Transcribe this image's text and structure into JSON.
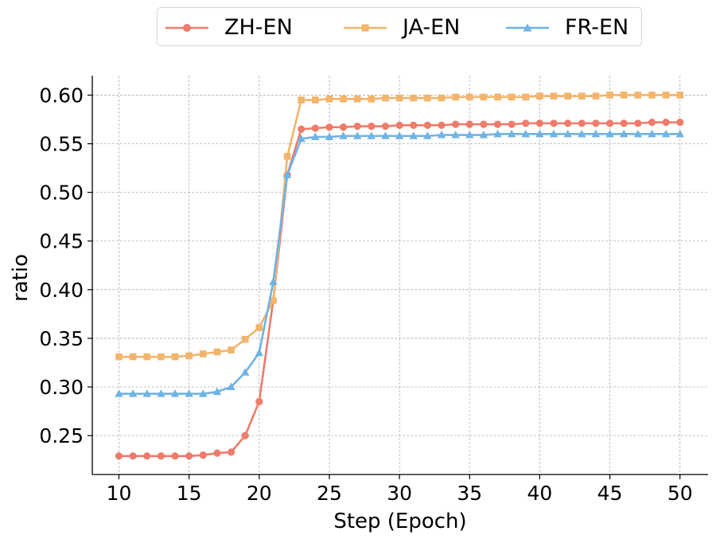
{
  "chart_data": {
    "type": "line",
    "xlabel": "Step (Epoch)",
    "ylabel": "ratio",
    "xlim": [
      8.1,
      52
    ],
    "ylim": [
      0.21,
      0.62
    ],
    "xticks": [
      10,
      15,
      20,
      25,
      30,
      35,
      40,
      45,
      50
    ],
    "xtick_labels": [
      "10",
      "15",
      "20",
      "25",
      "30",
      "35",
      "40",
      "45",
      "50"
    ],
    "yticks": [
      0.25,
      0.3,
      0.35,
      0.4,
      0.45,
      0.5,
      0.55,
      0.6
    ],
    "ytick_labels": [
      "0.25",
      "0.30",
      "0.35",
      "0.40",
      "0.45",
      "0.50",
      "0.55",
      "0.60"
    ],
    "grid": true,
    "legend_position": "top-center",
    "x": [
      10,
      11,
      12,
      13,
      14,
      15,
      16,
      17,
      18,
      19,
      20,
      21,
      22,
      23,
      24,
      25,
      26,
      27,
      28,
      29,
      30,
      31,
      32,
      33,
      34,
      35,
      36,
      37,
      38,
      39,
      40,
      41,
      42,
      43,
      44,
      45,
      46,
      47,
      48,
      49,
      50
    ],
    "series": [
      {
        "name": "ZH-EN",
        "color": "#EE7B6B",
        "marker": "circle",
        "values": [
          0.229,
          0.229,
          0.229,
          0.229,
          0.229,
          0.229,
          0.23,
          0.232,
          0.233,
          0.25,
          0.285,
          0.389,
          0.518,
          0.565,
          0.566,
          0.567,
          0.567,
          0.568,
          0.568,
          0.568,
          0.569,
          0.569,
          0.569,
          0.569,
          0.57,
          0.57,
          0.57,
          0.57,
          0.57,
          0.571,
          0.571,
          0.571,
          0.571,
          0.571,
          0.571,
          0.571,
          0.571,
          0.571,
          0.572,
          0.572,
          0.572
        ]
      },
      {
        "name": "JA-EN",
        "color": "#F3B46C",
        "marker": "square",
        "values": [
          0.331,
          0.331,
          0.331,
          0.331,
          0.331,
          0.332,
          0.334,
          0.336,
          0.338,
          0.349,
          0.361,
          0.389,
          0.537,
          0.595,
          0.595,
          0.596,
          0.596,
          0.596,
          0.596,
          0.597,
          0.597,
          0.597,
          0.597,
          0.597,
          0.598,
          0.598,
          0.598,
          0.598,
          0.598,
          0.598,
          0.599,
          0.599,
          0.599,
          0.599,
          0.599,
          0.6,
          0.6,
          0.6,
          0.6,
          0.6,
          0.6
        ]
      },
      {
        "name": "FR-EN",
        "color": "#6FB3E4",
        "marker": "triangle",
        "values": [
          0.293,
          0.293,
          0.293,
          0.293,
          0.293,
          0.293,
          0.293,
          0.295,
          0.3,
          0.315,
          0.335,
          0.408,
          0.518,
          0.555,
          0.557,
          0.557,
          0.558,
          0.558,
          0.558,
          0.558,
          0.558,
          0.558,
          0.558,
          0.559,
          0.559,
          0.559,
          0.559,
          0.56,
          0.56,
          0.56,
          0.56,
          0.56,
          0.56,
          0.56,
          0.56,
          0.56,
          0.56,
          0.56,
          0.56,
          0.56,
          0.56
        ]
      }
    ]
  }
}
